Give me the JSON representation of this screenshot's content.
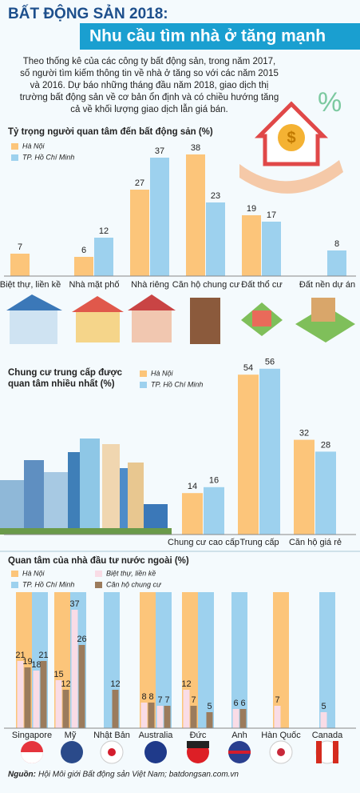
{
  "header": {
    "kicker": "BẤT ĐỘNG SẢN 2018:",
    "title": "Nhu cầu tìm nhà ở tăng mạnh"
  },
  "intro": "Theo thống kê của các công ty bất động sản, trong năm 2017, số người tìm kiếm thông tin về nhà ở tăng so với các năm 2015 và 2016. Dự báo những tháng đầu năm 2018, giao dịch thị trường bất động sản về cơ bản ổn định và có chiều hướng tăng cả về khối lượng giao dịch lẫn giá bán.",
  "chart_data": [
    {
      "type": "bar",
      "title": "Tỷ trọng người quan tâm đến bất động sản (%)",
      "categories": [
        "Biệt thự, liền kề",
        "Nhà mặt phố",
        "Nhà riêng",
        "Căn hộ chung cư",
        "Đất thổ cư",
        "Đất nền dự án"
      ],
      "series": [
        {
          "name": "Hà Nội",
          "color": "#fcc57a",
          "values": [
            7,
            6,
            27,
            38,
            19,
            null
          ]
        },
        {
          "name": "TP. Hồ Chí Minh",
          "color": "#9dd1ee",
          "values": [
            null,
            12,
            37,
            23,
            17,
            8
          ]
        }
      ]
    },
    {
      "type": "bar",
      "title": "Chung cư trung cấp được quan tâm nhiều nhất (%)",
      "categories": [
        "Chung cư cao cấp",
        "Trung cấp",
        "Căn hộ giá rẻ"
      ],
      "series": [
        {
          "name": "Hà Nội",
          "color": "#fcc57a",
          "values": [
            14,
            54,
            32
          ]
        },
        {
          "name": "TP. Hồ Chí Minh",
          "color": "#9dd1ee",
          "values": [
            16,
            56,
            28
          ]
        }
      ]
    },
    {
      "type": "nested-bar",
      "title": "Quan tâm của nhà đầu tư nước ngoài (%)",
      "categories": [
        "Singapore",
        "Mỹ",
        "Nhật Bản",
        "Australia",
        "Đức",
        "Anh",
        "Hàn Quốc",
        "Canada"
      ],
      "groups": [
        {
          "name": "Hà Nội",
          "color": "#fcc57a"
        },
        {
          "name": "TP. Hồ Chí Minh",
          "color": "#9dd1ee"
        }
      ],
      "series": [
        {
          "name": "Biệt thự, liền kề",
          "color": "#f9dce6",
          "values": [
            [
              21,
              18
            ],
            [
              15,
              37
            ],
            [
              null,
              null
            ],
            [
              8,
              7
            ],
            [
              12,
              null
            ],
            [
              null,
              6
            ],
            [
              7,
              null
            ],
            [
              null,
              5
            ]
          ]
        },
        {
          "name": "Căn hộ chung cư",
          "color": "#9b7b5c",
          "values": [
            [
              19,
              21
            ],
            [
              12,
              26
            ],
            [
              null,
              12
            ],
            [
              8,
              7
            ],
            [
              7,
              5
            ],
            [
              null,
              6
            ],
            [
              null,
              null
            ],
            [
              null,
              null
            ]
          ]
        }
      ]
    }
  ],
  "source": {
    "label": "Nguồn:",
    "text": "Hội Môi giới Bất động sản Việt Nam; batdongsan.com.vn"
  }
}
